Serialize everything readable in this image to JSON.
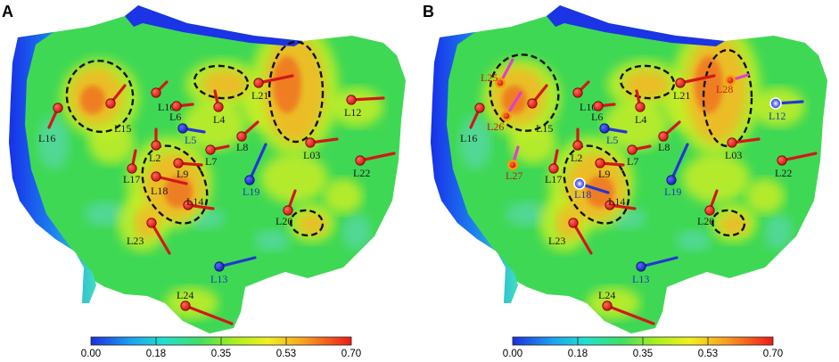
{
  "colors": {
    "producer": "#e02020",
    "producer_stroke": "#7a0000",
    "producer_line": "#d21818",
    "injector": "#1628c8",
    "injector_line": "#2436d6",
    "new_producer_line": "#e040c8",
    "new_producer_ring": "#f2a000",
    "label_red": "#1a1a1a",
    "label_new": "#c21e10",
    "label_blue": "#1a3bb5"
  },
  "colorbar": {
    "ticks": [
      "0.00",
      "0.18",
      "0.35",
      "0.53",
      "0.70"
    ]
  },
  "panels": [
    {
      "id": "A",
      "label": "A",
      "wells": [
        {
          "name": "L16",
          "type": "producer",
          "icon": "producer-well-icon"
        },
        {
          "name": "L15",
          "type": "producer",
          "icon": "producer-well-icon"
        },
        {
          "name": "L10",
          "type": "producer",
          "icon": "producer-well-icon"
        },
        {
          "name": "L6",
          "type": "producer",
          "icon": "producer-well-icon"
        },
        {
          "name": "L4",
          "type": "producer",
          "icon": "producer-well-icon"
        },
        {
          "name": "L21",
          "type": "producer",
          "icon": "producer-well-icon"
        },
        {
          "name": "L12",
          "type": "producer",
          "icon": "producer-well-icon"
        },
        {
          "name": "L5",
          "type": "injector",
          "icon": "injector-well-icon"
        },
        {
          "name": "L8",
          "type": "producer",
          "icon": "producer-well-icon"
        },
        {
          "name": "L03",
          "type": "producer",
          "icon": "producer-well-icon"
        },
        {
          "name": "L2",
          "type": "producer",
          "icon": "producer-well-icon"
        },
        {
          "name": "L7",
          "type": "producer",
          "icon": "producer-well-icon"
        },
        {
          "name": "L9",
          "type": "producer",
          "icon": "producer-well-icon"
        },
        {
          "name": "L17",
          "type": "producer",
          "icon": "producer-well-icon"
        },
        {
          "name": "L18",
          "type": "producer",
          "icon": "producer-well-icon"
        },
        {
          "name": "L19",
          "type": "injector",
          "icon": "injector-well-icon"
        },
        {
          "name": "L22",
          "type": "producer",
          "icon": "producer-well-icon"
        },
        {
          "name": "L14",
          "type": "producer",
          "icon": "producer-well-icon"
        },
        {
          "name": "L20",
          "type": "producer",
          "icon": "producer-well-icon"
        },
        {
          "name": "L23",
          "type": "producer",
          "icon": "producer-well-icon"
        },
        {
          "name": "L13",
          "type": "injector",
          "icon": "injector-well-icon"
        },
        {
          "name": "L24",
          "type": "producer",
          "icon": "producer-well-icon"
        }
      ]
    },
    {
      "id": "B",
      "label": "B",
      "wells": [
        {
          "name": "L25",
          "type": "new-producer",
          "icon": "new-producer-well-icon"
        },
        {
          "name": "L16",
          "type": "producer",
          "icon": "producer-well-icon"
        },
        {
          "name": "L26",
          "type": "new-producer",
          "icon": "new-producer-well-icon"
        },
        {
          "name": "L15",
          "type": "producer",
          "icon": "producer-well-icon"
        },
        {
          "name": "L10",
          "type": "producer",
          "icon": "producer-well-icon"
        },
        {
          "name": "L6",
          "type": "producer",
          "icon": "producer-well-icon"
        },
        {
          "name": "L4",
          "type": "producer",
          "icon": "producer-well-icon"
        },
        {
          "name": "L21",
          "type": "producer",
          "icon": "producer-well-icon"
        },
        {
          "name": "L28",
          "type": "new-producer",
          "icon": "new-producer-well-icon"
        },
        {
          "name": "L12",
          "type": "converted-injector",
          "icon": "converted-injector-well-icon"
        },
        {
          "name": "L5",
          "type": "injector",
          "icon": "injector-well-icon"
        },
        {
          "name": "L8",
          "type": "producer",
          "icon": "producer-well-icon"
        },
        {
          "name": "L03",
          "type": "producer",
          "icon": "producer-well-icon"
        },
        {
          "name": "L2",
          "type": "producer",
          "icon": "producer-well-icon"
        },
        {
          "name": "L7",
          "type": "producer",
          "icon": "producer-well-icon"
        },
        {
          "name": "L27",
          "type": "new-producer",
          "icon": "new-producer-well-icon"
        },
        {
          "name": "L17",
          "type": "producer",
          "icon": "producer-well-icon"
        },
        {
          "name": "L9",
          "type": "producer",
          "icon": "producer-well-icon"
        },
        {
          "name": "L18",
          "type": "converted-injector",
          "icon": "converted-injector-well-icon"
        },
        {
          "name": "L19",
          "type": "injector",
          "icon": "injector-well-icon"
        },
        {
          "name": "L22",
          "type": "producer",
          "icon": "producer-well-icon"
        },
        {
          "name": "L14",
          "type": "producer",
          "icon": "producer-well-icon"
        },
        {
          "name": "L20",
          "type": "producer",
          "icon": "producer-well-icon"
        },
        {
          "name": "L23",
          "type": "producer",
          "icon": "producer-well-icon"
        },
        {
          "name": "L13",
          "type": "injector",
          "icon": "injector-well-icon"
        },
        {
          "name": "L24",
          "type": "producer",
          "icon": "producer-well-icon"
        }
      ]
    }
  ]
}
